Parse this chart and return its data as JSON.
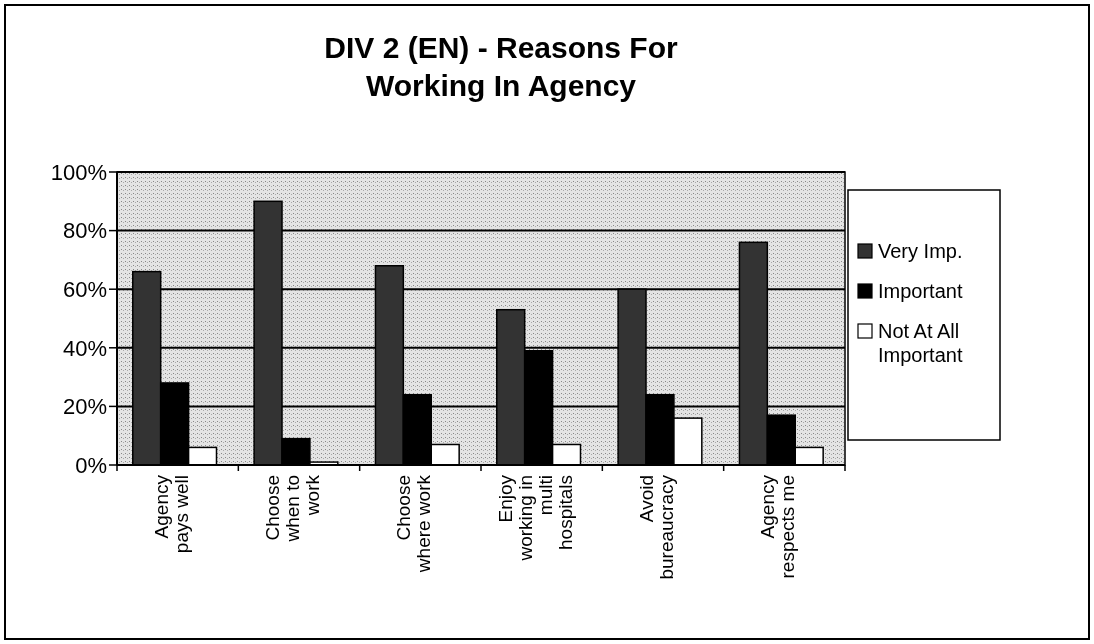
{
  "chart_data": {
    "type": "bar",
    "title": "DIV 2 (EN) - Reasons For\nWorking In Agency",
    "categories": [
      "Agency\npays well",
      "Choose\nwhen to\nwork",
      "Choose\nwhere work",
      "Enjoy\nworking in\nmulti\nhospitals",
      "Avoid\nbureaucracy",
      "Agency\nrespects me"
    ],
    "series": [
      {
        "name": "Very Imp.",
        "color": "#333333",
        "values": [
          66,
          90,
          68,
          53,
          60,
          76
        ]
      },
      {
        "name": "Important",
        "color": "#000000",
        "values": [
          28,
          9,
          24,
          39,
          24,
          17
        ]
      },
      {
        "name": "Not At All\nImportant",
        "color": "#ffffff",
        "values": [
          6,
          1,
          7,
          7,
          16,
          6
        ]
      }
    ],
    "ylim": [
      0,
      100
    ],
    "yticks": [
      {
        "value": 0,
        "label": "0%"
      },
      {
        "value": 20,
        "label": "20%"
      },
      {
        "value": 40,
        "label": "40%"
      },
      {
        "value": 60,
        "label": "60%"
      },
      {
        "value": 80,
        "label": "80%"
      },
      {
        "value": 100,
        "label": "100%"
      }
    ],
    "grid": "y",
    "legend": "right"
  }
}
